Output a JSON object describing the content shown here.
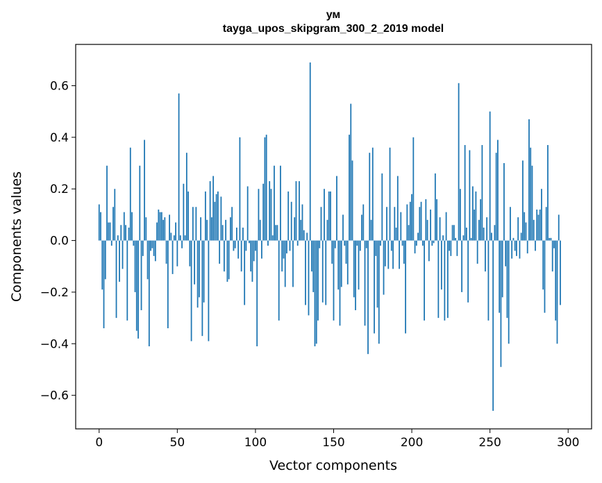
{
  "chart_data": {
    "type": "bar",
    "title": "ум",
    "subtitle": "tayga_upos_skipgram_300_2_2019 model",
    "xlabel": "Vector components",
    "ylabel": "Components values",
    "xlim": [
      -15,
      315
    ],
    "ylim": [
      -0.73,
      0.76
    ],
    "xticks": [
      0,
      50,
      100,
      150,
      200,
      250,
      300
    ],
    "yticks": [
      -0.6,
      -0.4,
      -0.2,
      0.0,
      0.2,
      0.4,
      0.6
    ],
    "ytick_labels": [
      "−0.6",
      "−0.4",
      "−0.2",
      "0.0",
      "0.2",
      "0.4",
      "0.6"
    ],
    "bar_color": "#1f77b4",
    "grid": false,
    "series": [
      {
        "values": [
          0.14,
          0.11,
          -0.19,
          -0.34,
          -0.15,
          0.29,
          0.07,
          0.07,
          -0.02,
          0.13,
          0.2,
          -0.3,
          0.02,
          -0.16,
          0.06,
          -0.11,
          0.11,
          0.06,
          -0.31,
          0.05,
          0.36,
          0.11,
          -0.02,
          -0.2,
          -0.35,
          -0.38,
          0.29,
          -0.27,
          -0.06,
          0.39,
          0.09,
          -0.15,
          -0.41,
          -0.04,
          -0.03,
          -0.06,
          -0.08,
          0.07,
          0.12,
          0.11,
          0.11,
          0.08,
          0.09,
          -0.09,
          -0.34,
          0.1,
          0.03,
          -0.13,
          0.02,
          0.07,
          -0.1,
          0.57,
          0.02,
          -0.03,
          0.22,
          0.02,
          0.34,
          0.19,
          -0.1,
          -0.39,
          0.13,
          -0.17,
          0.13,
          -0.26,
          -0.22,
          0.09,
          -0.37,
          -0.24,
          0.19,
          0.08,
          -0.39,
          0.23,
          0.09,
          0.25,
          0.15,
          0.18,
          0.19,
          -0.09,
          0.17,
          0.06,
          -0.12,
          0.08,
          -0.16,
          -0.15,
          0.09,
          0.13,
          -0.04,
          -0.03,
          0.05,
          -0.07,
          0.4,
          -0.12,
          0.05,
          -0.25,
          -0.04,
          0.21,
          -0.01,
          -0.12,
          -0.16,
          -0.08,
          -0.04,
          -0.41,
          0.2,
          0.08,
          -0.07,
          0.22,
          0.4,
          0.41,
          -0.02,
          0.23,
          0.2,
          0.02,
          0.29,
          0.06,
          0.06,
          -0.31,
          0.29,
          -0.12,
          -0.07,
          -0.18,
          -0.05,
          0.19,
          -0.04,
          0.15,
          -0.18,
          0.09,
          0.23,
          -0.02,
          0.23,
          0.08,
          0.14,
          0.04,
          -0.25,
          0.03,
          -0.29,
          0.69,
          -0.12,
          -0.2,
          -0.41,
          -0.4,
          -0.31,
          -0.03,
          0.13,
          -0.24,
          0.2,
          -0.25,
          0.08,
          0.19,
          0.19,
          -0.09,
          -0.31,
          -0.03,
          0.25,
          -0.19,
          -0.33,
          -0.18,
          0.1,
          -0.02,
          -0.09,
          -0.17,
          0.41,
          0.53,
          0.31,
          -0.22,
          -0.27,
          -0.02,
          -0.19,
          -0.04,
          0.1,
          0.14,
          -0.33,
          -0.03,
          -0.44,
          0.34,
          0.08,
          0.36,
          -0.36,
          -0.06,
          -0.26,
          -0.4,
          -0.02,
          0.26,
          -0.21,
          -0.1,
          0.13,
          -0.11,
          0.36,
          -0.04,
          -0.11,
          0.13,
          0.05,
          0.25,
          -0.11,
          0.11,
          -0.02,
          -0.09,
          -0.36,
          0.14,
          0.06,
          0.15,
          0.18,
          0.4,
          -0.05,
          -0.02,
          0.03,
          0.13,
          0.15,
          -0.02,
          -0.31,
          0.16,
          0.08,
          -0.08,
          0.12,
          -0.02,
          -0.01,
          0.26,
          0.16,
          -0.3,
          0.09,
          -0.19,
          0.02,
          -0.31,
          0.11,
          -0.3,
          -0.04,
          -0.06,
          0.06,
          0.06,
          0.01,
          -0.06,
          0.61,
          0.2,
          -0.2,
          0.02,
          0.37,
          0.05,
          -0.24,
          0.35,
          0.01,
          0.21,
          0.12,
          0.19,
          -0.09,
          0.08,
          0.16,
          0.37,
          0.05,
          -0.12,
          0.09,
          -0.31,
          0.5,
          0.03,
          -0.66,
          0.06,
          0.34,
          0.39,
          -0.28,
          -0.49,
          -0.22,
          0.3,
          -0.1,
          -0.3,
          -0.4,
          0.13,
          -0.07,
          0.01,
          -0.04,
          -0.06,
          0.09,
          -0.07,
          0.03,
          0.31,
          0.11,
          0.07,
          -0.05,
          0.47,
          0.36,
          0.29,
          0.08,
          -0.04,
          0.12,
          0.1,
          0.12,
          0.2,
          -0.19,
          -0.28,
          0.13,
          0.37,
          0.01,
          0.01,
          -0.12,
          -0.03,
          -0.31,
          -0.4,
          0.1,
          -0.25
        ]
      }
    ]
  }
}
